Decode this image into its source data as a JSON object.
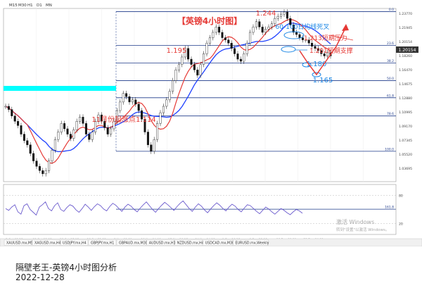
{
  "toolbar": {
    "timeframes": [
      "M15",
      "M30",
      "H1",
      "D1",
      "MN"
    ]
  },
  "chart_data": [
    {
      "type": "line",
      "title": "【英镑4小时图】",
      "series": [
        {
          "values": [
            1.156,
            1.153,
            1.147,
            1.142,
            1.138,
            1.13,
            1.124,
            1.12,
            1.112,
            1.105,
            1.1,
            1.096,
            1.093,
            1.096,
            1.105,
            1.115,
            1.125,
            1.132,
            1.14,
            1.135,
            1.13,
            1.126,
            1.134,
            1.142,
            1.146,
            1.14,
            1.13,
            1.125,
            1.132,
            1.142,
            1.148,
            1.142,
            1.136,
            1.13,
            1.135,
            1.142,
            1.152,
            1.16,
            1.168,
            1.165,
            1.16,
            1.162,
            1.158,
            1.152,
            1.144,
            1.132,
            1.12,
            1.114,
            1.125,
            1.14,
            1.15,
            1.156,
            1.162,
            1.17,
            1.18,
            1.19,
            1.195,
            1.202,
            1.21,
            1.2,
            1.195,
            1.19,
            1.185,
            1.195,
            1.205,
            1.215,
            1.22,
            1.225,
            1.23,
            1.225,
            1.22,
            1.218,
            1.215,
            1.21,
            1.205,
            1.2,
            1.198,
            1.205,
            1.215,
            1.225,
            1.23,
            1.235,
            1.23,
            1.225,
            1.228,
            1.23,
            1.233,
            1.238,
            1.24,
            1.242,
            1.244,
            1.238,
            1.232,
            1.225,
            1.223,
            1.22,
            1.218,
            1.218,
            1.215,
            1.212,
            1.21,
            1.208,
            1.205,
            1.203,
            1.206,
            1.203
          ]
        }
      ],
      "yaxis": {
        "ticks": [
          "1.23770",
          "1.21945",
          "1.20154",
          "1.18260",
          "1.16470",
          "1.14675",
          "1.12880",
          "1.10995",
          "1.09170",
          "1.07345",
          "1.05520",
          "1.03695"
        ]
      },
      "xaxis": {
        "ticks": [
          "5 Oct 09:15",
          "12 Oct 13:15",
          "19 Oct 17:15",
          "26 Oct 21:15",
          "3 Nov 00:00",
          "10 Nov 04:00",
          "17 Nov 10:15",
          "24 Nov 14:15",
          "1 Dec 18:15",
          "8 Dec 22:15",
          "16 Dec 00:00",
          "23 Dec 04:00"
        ]
      },
      "fib_levels": [
        {
          "label": "0.0"
        },
        {
          "label": "23.6"
        },
        {
          "label": "38.2"
        },
        {
          "label": "50.0"
        },
        {
          "label": "61.8"
        },
        {
          "label": "78.6"
        },
        {
          "label": "100.0"
        },
        {
          "label": "161.8"
        }
      ],
      "annotations": [
        "1.244",
        "60-100日均线死叉",
        "1.213短期压力",
        "1.195",
        "1.201短期支撑",
        "1.180",
        "1.165",
        "11月份起涨点1.114"
      ],
      "current_price": "1.20154",
      "colors": {
        "price": "#111111",
        "ma60": "#e53935",
        "ma100": "#1e40ff",
        "fib": "#1e3a8a",
        "band": "#00ffff",
        "annotation_red": "#e53935",
        "annotation_blue": "#1e88e5"
      }
    },
    {
      "type": "line",
      "series": [
        {
          "values": [
            52,
            48,
            55,
            60,
            45,
            40,
            58,
            62,
            50,
            44,
            38,
            55,
            60,
            66,
            52,
            47,
            58,
            64,
            50,
            46,
            54,
            60,
            57,
            49,
            44,
            52,
            61,
            55,
            48,
            56,
            62,
            58,
            51,
            47,
            56,
            63,
            59,
            52,
            46,
            55,
            61,
            57,
            50,
            45,
            53,
            60,
            66,
            58,
            50,
            44,
            52,
            59,
            65,
            60,
            54,
            48,
            56,
            63,
            68,
            60,
            52,
            46,
            55,
            62,
            57,
            49,
            43,
            51,
            58,
            64,
            59,
            52,
            47,
            55,
            61,
            57,
            50,
            45,
            53,
            60,
            58,
            52,
            46,
            41,
            48,
            55,
            51,
            45,
            40,
            46,
            52,
            48,
            43,
            39,
            45,
            50,
            47,
            42
          ]
        }
      ],
      "ylim": [
        0,
        100
      ],
      "levels": [
        80,
        20
      ]
    }
  ],
  "taskbar": {
    "tabs": [
      "XAUUSD.mx,M5",
      "XAGUSD.mx,H4",
      "USDJPY.mx,H4",
      "GBPJPY.mx,H1",
      "GBPAUD.mx,M30",
      "AUDUSD.mx,H1",
      "NZDUSD.mx,H4",
      "USDCAD.mx,M30",
      "EURUSD.mx,Weekly"
    ]
  },
  "watermark": {
    "line1": "激活 Windows",
    "line2": "转到\"设置\"以激活 Windows。"
  },
  "caption": {
    "author": "隔壁老王-英镑4小时图分析",
    "date": "2022-12-28"
  }
}
